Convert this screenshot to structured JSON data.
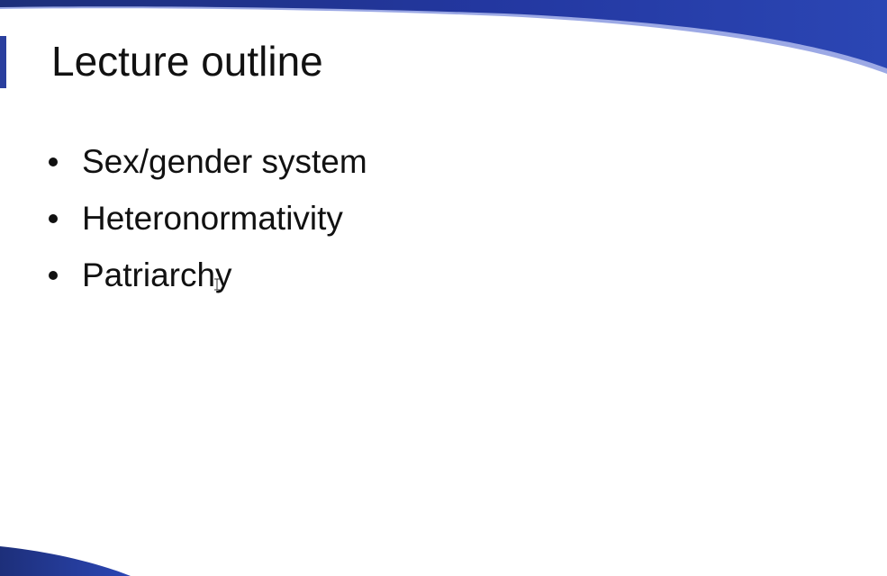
{
  "slide": {
    "title": "Lecture outline",
    "bullets": [
      "Sex/gender system",
      "Heteronormativity",
      "Patriarchy"
    ]
  },
  "colors": {
    "banner_dark": "#1d2f7a",
    "banner_mid": "#2b46b4",
    "banner_light": "#4a63cf",
    "text": "#111111",
    "background": "#ffffff"
  },
  "icons": {
    "cursor": "text-cursor-icon"
  }
}
